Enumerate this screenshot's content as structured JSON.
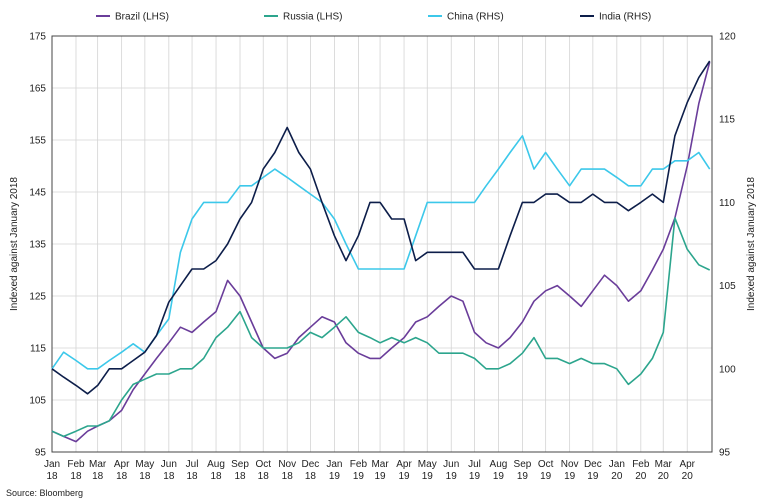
{
  "chart_data": {
    "type": "line",
    "title": "",
    "ylabel_left": "Indexed against January 2018",
    "ylabel_right": "Indexed against January 2018",
    "ylim_left": [
      95,
      175
    ],
    "ylim_right": [
      95,
      120
    ],
    "yticks_left": [
      95,
      105,
      115,
      125,
      135,
      145,
      155,
      165,
      175
    ],
    "yticks_right": [
      95,
      100,
      105,
      110,
      115,
      120
    ],
    "xticks": [
      {
        "month": "Jan",
        "year": "18"
      },
      {
        "month": "Feb",
        "year": "18"
      },
      {
        "month": "Mar",
        "year": "18"
      },
      {
        "month": "Apr",
        "year": "18"
      },
      {
        "month": "May",
        "year": "18"
      },
      {
        "month": "Jun",
        "year": "18"
      },
      {
        "month": "Jul",
        "year": "18"
      },
      {
        "month": "Aug",
        "year": "18"
      },
      {
        "month": "Sep",
        "year": "18"
      },
      {
        "month": "Oct",
        "year": "18"
      },
      {
        "month": "Nov",
        "year": "18"
      },
      {
        "month": "Dec",
        "year": "18"
      },
      {
        "month": "Jan",
        "year": "19"
      },
      {
        "month": "Feb",
        "year": "19"
      },
      {
        "month": "Mar",
        "year": "19"
      },
      {
        "month": "Apr",
        "year": "19"
      },
      {
        "month": "May",
        "year": "19"
      },
      {
        "month": "Jun",
        "year": "19"
      },
      {
        "month": "Jul",
        "year": "19"
      },
      {
        "month": "Aug",
        "year": "19"
      },
      {
        "month": "Sep",
        "year": "19"
      },
      {
        "month": "Oct",
        "year": "19"
      },
      {
        "month": "Nov",
        "year": "19"
      },
      {
        "month": "Dec",
        "year": "19"
      },
      {
        "month": "Jan",
        "year": "20"
      },
      {
        "month": "Feb",
        "year": "20"
      },
      {
        "month": "Mar",
        "year": "20"
      },
      {
        "month": "Apr",
        "year": "20"
      }
    ],
    "x": [
      "2018-01-01",
      "2018-01-16",
      "2018-02-01",
      "2018-02-16",
      "2018-03-01",
      "2018-03-16",
      "2018-04-01",
      "2018-04-16",
      "2018-05-01",
      "2018-05-16",
      "2018-06-01",
      "2018-06-16",
      "2018-07-01",
      "2018-07-16",
      "2018-08-01",
      "2018-08-16",
      "2018-09-01",
      "2018-09-16",
      "2018-10-01",
      "2018-10-16",
      "2018-11-01",
      "2018-11-16",
      "2018-12-01",
      "2018-12-16",
      "2019-01-01",
      "2019-01-16",
      "2019-02-01",
      "2019-02-16",
      "2019-03-01",
      "2019-03-16",
      "2019-04-01",
      "2019-04-16",
      "2019-05-01",
      "2019-05-16",
      "2019-06-01",
      "2019-06-16",
      "2019-07-01",
      "2019-07-16",
      "2019-08-01",
      "2019-08-16",
      "2019-09-01",
      "2019-09-16",
      "2019-10-01",
      "2019-10-16",
      "2019-11-01",
      "2019-11-16",
      "2019-12-01",
      "2019-12-16",
      "2020-01-01",
      "2020-01-16",
      "2020-02-01",
      "2020-02-16",
      "2020-03-01",
      "2020-03-16",
      "2020-04-01",
      "2020-04-16",
      "2020-04-30"
    ],
    "series": [
      {
        "name": "Brazil (LHS)",
        "axis": "left",
        "color": "#6a3d9a",
        "values": [
          99,
          98,
          97,
          99,
          100,
          101,
          103,
          107,
          110,
          113,
          116,
          119,
          118,
          120,
          122,
          128,
          125,
          120,
          115,
          113,
          114,
          117,
          119,
          121,
          120,
          116,
          114,
          113,
          113,
          115,
          117,
          120,
          121,
          123,
          125,
          124,
          118,
          116,
          115,
          117,
          120,
          124,
          126,
          127,
          125,
          123,
          126,
          129,
          127,
          124,
          126,
          130,
          134,
          140,
          150,
          162,
          170
        ]
      },
      {
        "name": "Russia (LHS)",
        "axis": "left",
        "color": "#2ca58d",
        "values": [
          99,
          98,
          99,
          100,
          100,
          101,
          105,
          108,
          109,
          110,
          110,
          111,
          111,
          113,
          117,
          119,
          122,
          117,
          115,
          115,
          115,
          116,
          118,
          117,
          119,
          121,
          118,
          117,
          116,
          117,
          116,
          117,
          116,
          114,
          114,
          114,
          113,
          111,
          111,
          112,
          114,
          117,
          113,
          113,
          112,
          113,
          112,
          112,
          111,
          108,
          110,
          113,
          118,
          140,
          134,
          131,
          130
        ]
      },
      {
        "name": "China (RHS)",
        "axis": "right",
        "color": "#3cc8ea",
        "values": [
          100,
          101,
          100.5,
          100,
          100,
          100.5,
          101,
          101.5,
          101,
          102,
          103,
          107,
          109,
          110,
          110,
          110,
          111,
          111,
          111.5,
          112,
          111.5,
          111,
          110.5,
          110,
          109,
          107.5,
          106,
          106,
          106,
          106,
          106,
          108,
          110,
          110,
          110,
          110,
          110,
          111,
          112,
          113,
          114,
          112,
          113,
          112,
          111,
          112,
          112,
          112,
          111.5,
          111,
          111,
          112,
          112,
          112.5,
          112.5,
          113,
          112
        ]
      },
      {
        "name": "India (RHS)",
        "axis": "right",
        "color": "#0d1e4a",
        "values": [
          100,
          99.5,
          99,
          98.5,
          99,
          100,
          100,
          100.5,
          101,
          102,
          104,
          105,
          106,
          106,
          106.5,
          107.5,
          109,
          110,
          112,
          113,
          114.5,
          113,
          112,
          110,
          108,
          106.5,
          108,
          110,
          110,
          109,
          109,
          106.5,
          107,
          107,
          107,
          107,
          106,
          106,
          106,
          108,
          110,
          110,
          110.5,
          110.5,
          110,
          110,
          110.5,
          110,
          110,
          109.5,
          110,
          110.5,
          110,
          114,
          116,
          117.5,
          118.5
        ]
      }
    ],
    "legend_placement": "top"
  },
  "source_text": "Source: Bloomberg"
}
